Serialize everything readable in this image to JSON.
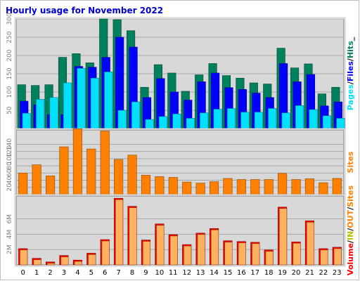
{
  "chart_data": [
    {
      "type": "bar",
      "title": "Hourly usage for November 2022",
      "categories": [
        "0",
        "1",
        "2",
        "3",
        "4",
        "5",
        "6",
        "7",
        "8",
        "9",
        "10",
        "11",
        "12",
        "13",
        "14",
        "15",
        "16",
        "17",
        "18",
        "19",
        "20",
        "21",
        "22",
        "23"
      ],
      "ylim": [
        0,
        300
      ],
      "yticks": [
        "50",
        "100",
        "150",
        "200",
        "250",
        "300"
      ],
      "side_labels": [
        "Pages",
        "/",
        "Files",
        "/",
        "Hits",
        "_"
      ],
      "series": [
        {
          "name": "Hits",
          "color": "#00805c",
          "values": [
            120,
            118,
            120,
            195,
            205,
            180,
            300,
            298,
            268,
            113,
            175,
            152,
            102,
            147,
            178,
            145,
            138,
            125,
            122,
            220,
            166,
            177,
            95,
            113
          ]
        },
        {
          "name": "Files",
          "color": "#0000ff",
          "values": [
            75,
            65,
            38,
            38,
            170,
            168,
            195,
            250,
            223,
            85,
            137,
            100,
            78,
            128,
            152,
            112,
            107,
            97,
            85,
            178,
            128,
            148,
            62,
            73
          ]
        },
        {
          "name": "Pages",
          "color": "#00e0ff",
          "values": [
            42,
            80,
            85,
            125,
            165,
            138,
            155,
            50,
            73,
            25,
            33,
            40,
            28,
            43,
            53,
            55,
            45,
            45,
            55,
            43,
            63,
            52,
            35,
            28
          ]
        }
      ]
    },
    {
      "type": "bar",
      "categories": [
        "0",
        "1",
        "2",
        "3",
        "4",
        "5",
        "6",
        "7",
        "8",
        "9",
        "10",
        "11",
        "12",
        "13",
        "14",
        "15",
        "16",
        "17",
        "18",
        "19",
        "20",
        "21",
        "22",
        "23"
      ],
      "ylim": [
        0,
        180
      ],
      "yticks": [
        "20",
        "40",
        "60",
        "80",
        "100",
        "120",
        "140"
      ],
      "side_labels": [
        "Sites"
      ],
      "series": [
        {
          "name": "Sites",
          "color": "#ff8000",
          "values": [
            60,
            83,
            52,
            133,
            183,
            127,
            177,
            98,
            110,
            54,
            50,
            48,
            35,
            32,
            36,
            45,
            42,
            42,
            42,
            59,
            42,
            44,
            33,
            45
          ]
        }
      ]
    },
    {
      "type": "bar",
      "categories": [
        "0",
        "1",
        "2",
        "3",
        "4",
        "5",
        "6",
        "7",
        "8",
        "9",
        "10",
        "11",
        "12",
        "13",
        "14",
        "15",
        "16",
        "17",
        "18",
        "19",
        "20",
        "21",
        "22",
        "23"
      ],
      "ylim": [
        0,
        9
      ],
      "yticks": [
        "2M",
        "4M",
        "6M"
      ],
      "side_labels": [
        "Volume",
        "/",
        "IN",
        "/",
        "OUT",
        "/",
        "Sites"
      ],
      "series": [
        {
          "name": "Volume",
          "color": "#ff0000",
          "values": [
            2.12,
            0.85,
            0.38,
            1.22,
            0.62,
            1.52,
            3.3,
            8.7,
            7.65,
            3.25,
            5.35,
            3.95,
            2.65,
            4.15,
            4.75,
            3.15,
            3.05,
            2.95,
            1.95,
            7.55,
            3.0,
            5.75,
            2.12,
            2.3
          ]
        }
      ]
    }
  ]
}
